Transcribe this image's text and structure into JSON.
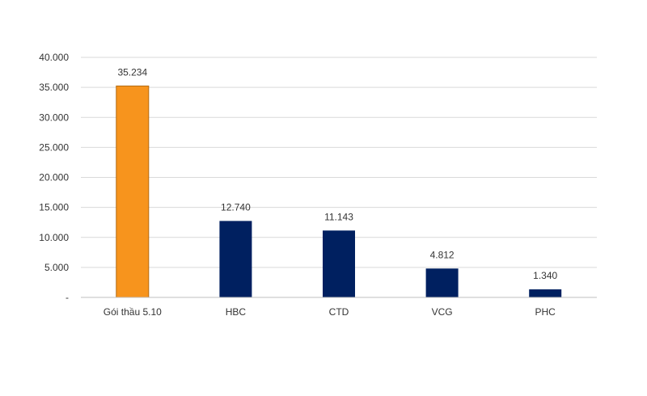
{
  "chart_data": {
    "type": "bar",
    "title": "",
    "xlabel": "",
    "ylabel": "",
    "categories": [
      "Gói thầu 5.10",
      "HBC",
      "CTD",
      "VCG",
      "PHC"
    ],
    "values": [
      35234,
      12740,
      11143,
      4812,
      1340
    ],
    "value_labels": [
      "35.234",
      "12.740",
      "11.143",
      "4.812",
      "1.340"
    ],
    "ylim": [
      0,
      40000
    ],
    "yticks": [
      0,
      5000,
      10000,
      15000,
      20000,
      25000,
      30000,
      35000,
      40000
    ],
    "ytick_labels": [
      "-",
      "5.000",
      "10.000",
      "15.000",
      "20.000",
      "25.000",
      "30.000",
      "35.000",
      "40.000"
    ],
    "grid": true,
    "legend": "none",
    "colors": {
      "highlight": "#f7941d",
      "highlight_border": "#b36a12",
      "default": "#002060",
      "grid": "#d9d9d9"
    },
    "highlight_index": 0
  }
}
